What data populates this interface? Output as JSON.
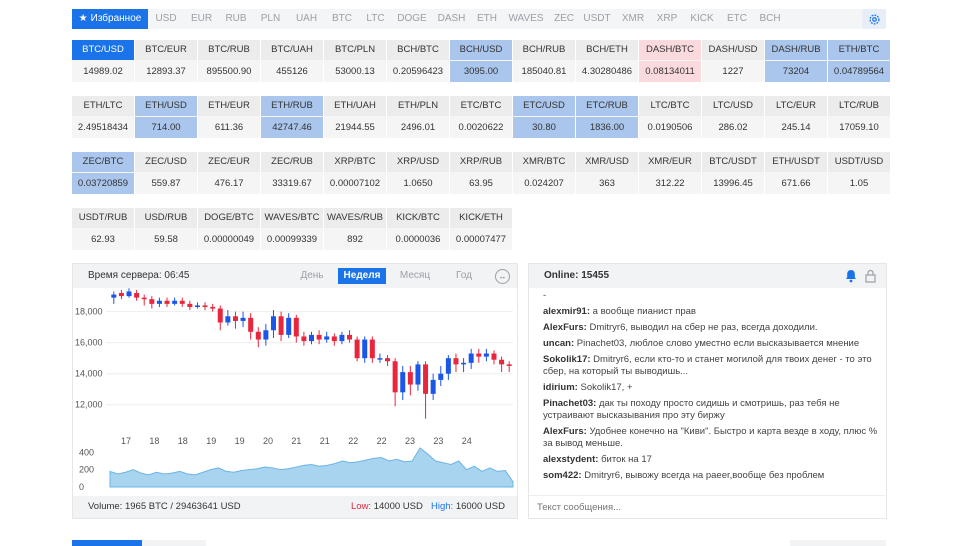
{
  "tabs": [
    {
      "label": "Избранное",
      "active": true
    },
    {
      "label": "USD"
    },
    {
      "label": "EUR"
    },
    {
      "label": "RUB"
    },
    {
      "label": "PLN"
    },
    {
      "label": "UAH"
    },
    {
      "label": "BTC"
    },
    {
      "label": "LTC"
    },
    {
      "label": "DOGE"
    },
    {
      "label": "DASH"
    },
    {
      "label": "ETH"
    },
    {
      "label": "WAVES"
    },
    {
      "label": "ZEC"
    },
    {
      "label": "USDT"
    },
    {
      "label": "XMR"
    },
    {
      "label": "XRP"
    },
    {
      "label": "KICK"
    },
    {
      "label": "ETC"
    },
    {
      "label": "BCH"
    }
  ],
  "pairs": [
    [
      {
        "pair": "BTC/USD",
        "price": "14989.02",
        "state": "selected"
      },
      {
        "pair": "BTC/EUR",
        "price": "12893.37"
      },
      {
        "pair": "BTC/RUB",
        "price": "895500.90"
      },
      {
        "pair": "BTC/UAH",
        "price": "455126"
      },
      {
        "pair": "BTC/PLN",
        "price": "53000.13"
      },
      {
        "pair": "BCH/BTC",
        "price": "0.20596423"
      },
      {
        "pair": "BCH/USD",
        "price": "3095.00",
        "state": "highlight"
      },
      {
        "pair": "BCH/RUB",
        "price": "185040.81"
      },
      {
        "pair": "BCH/ETH",
        "price": "4.30280486"
      },
      {
        "pair": "DASH/BTC",
        "price": "0.08134011",
        "state": "pink"
      },
      {
        "pair": "DASH/USD",
        "price": "1227"
      },
      {
        "pair": "DASH/RUB",
        "price": "73204",
        "state": "highlight"
      },
      {
        "pair": "ETH/BTC",
        "price": "0.04789564",
        "state": "highlight"
      }
    ],
    [
      {
        "pair": "ETH/LTC",
        "price": "2.49518434"
      },
      {
        "pair": "ETH/USD",
        "price": "714.00",
        "state": "highlight"
      },
      {
        "pair": "ETH/EUR",
        "price": "611.36"
      },
      {
        "pair": "ETH/RUB",
        "price": "42747.46",
        "state": "highlight"
      },
      {
        "pair": "ETH/UAH",
        "price": "21944.55"
      },
      {
        "pair": "ETH/PLN",
        "price": "2496.01"
      },
      {
        "pair": "ETC/BTC",
        "price": "0.0020622"
      },
      {
        "pair": "ETC/USD",
        "price": "30.80",
        "state": "highlight"
      },
      {
        "pair": "ETC/RUB",
        "price": "1836.00",
        "state": "highlight"
      },
      {
        "pair": "LTC/BTC",
        "price": "0.0190506"
      },
      {
        "pair": "LTC/USD",
        "price": "286.02"
      },
      {
        "pair": "LTC/EUR",
        "price": "245.14"
      },
      {
        "pair": "LTC/RUB",
        "price": "17059.10"
      }
    ],
    [
      {
        "pair": "ZEC/BTC",
        "price": "0.03720859",
        "state": "highlight"
      },
      {
        "pair": "ZEC/USD",
        "price": "559.87"
      },
      {
        "pair": "ZEC/EUR",
        "price": "476.17"
      },
      {
        "pair": "ZEC/RUB",
        "price": "33319.67"
      },
      {
        "pair": "XRP/BTC",
        "price": "0.00007102"
      },
      {
        "pair": "XRP/USD",
        "price": "1.0650"
      },
      {
        "pair": "XRP/RUB",
        "price": "63.95"
      },
      {
        "pair": "XMR/BTC",
        "price": "0.024207"
      },
      {
        "pair": "XMR/USD",
        "price": "363"
      },
      {
        "pair": "XMR/EUR",
        "price": "312.22"
      },
      {
        "pair": "BTC/USDT",
        "price": "13996.45"
      },
      {
        "pair": "ETH/USDT",
        "price": "671.66"
      },
      {
        "pair": "USDT/USD",
        "price": "1.05"
      }
    ],
    [
      {
        "pair": "USDT/RUB",
        "price": "62.93"
      },
      {
        "pair": "USD/RUB",
        "price": "59.58"
      },
      {
        "pair": "DOGE/BTC",
        "price": "0.00000049"
      },
      {
        "pair": "WAVES/BTC",
        "price": "0.00099339"
      },
      {
        "pair": "WAVES/RUB",
        "price": "892"
      },
      {
        "pair": "KICK/BTC",
        "price": "0.0000036"
      },
      {
        "pair": "KICK/ETH",
        "price": "0.00007477"
      }
    ]
  ],
  "chart_panel": {
    "server_time_label": "Время сервера: 06:45",
    "ranges": [
      {
        "label": "День"
      },
      {
        "label": "Неделя",
        "active": true
      },
      {
        "label": "Месяц"
      },
      {
        "label": "Год"
      }
    ],
    "volume_text": "Volume: 1965 BTC / 29463641 USD",
    "low_label": "Low:",
    "low_value": "14000 USD",
    "high_label": "High:",
    "high_value": "16000 USD"
  },
  "chart_data": {
    "type": "candlestick",
    "x_ticks": [
      "17",
      "18",
      "18",
      "19",
      "19",
      "20",
      "21",
      "21",
      "22",
      "22",
      "23",
      "23",
      "24"
    ],
    "y_ticks": [
      "18,000",
      "16,000",
      "14,000",
      "12,000"
    ],
    "ylim": [
      10500,
      19200
    ],
    "candles": [
      [
        18900,
        19100,
        18500,
        19300
      ],
      [
        19200,
        19000,
        18800,
        19400
      ],
      [
        19000,
        19300,
        18900,
        19500
      ],
      [
        19200,
        18900,
        18700,
        19400
      ],
      [
        18900,
        18800,
        18400,
        19100
      ],
      [
        18800,
        18500,
        18200,
        19000
      ],
      [
        18500,
        18700,
        18300,
        18900
      ],
      [
        18700,
        18500,
        18300,
        18900
      ],
      [
        18500,
        18700,
        18400,
        18900
      ],
      [
        18700,
        18500,
        18300,
        18900
      ],
      [
        18500,
        18300,
        18100,
        18700
      ],
      [
        18300,
        18400,
        18200,
        18600
      ],
      [
        18400,
        18300,
        18100,
        18600
      ],
      [
        18300,
        18200,
        18000,
        18500
      ],
      [
        18200,
        17300,
        16800,
        18400
      ],
      [
        17300,
        17700,
        17100,
        18100
      ],
      [
        17700,
        17400,
        16900,
        18000
      ],
      [
        17400,
        17600,
        17000,
        18000
      ],
      [
        17600,
        16700,
        16200,
        17900
      ],
      [
        16700,
        16200,
        15700,
        17000
      ],
      [
        16200,
        16800,
        15800,
        17200
      ],
      [
        16800,
        17700,
        16300,
        18100
      ],
      [
        17700,
        16500,
        16100,
        18000
      ],
      [
        16500,
        17600,
        16300,
        17900
      ],
      [
        17600,
        16400,
        16000,
        17800
      ],
      [
        16400,
        16100,
        15800,
        16700
      ],
      [
        16100,
        16500,
        15900,
        16700
      ],
      [
        16500,
        16200,
        15900,
        16800
      ],
      [
        16200,
        16400,
        16000,
        16700
      ],
      [
        16400,
        16100,
        15800,
        16600
      ],
      [
        16100,
        16500,
        15900,
        16700
      ],
      [
        16500,
        16200,
        16000,
        16800
      ],
      [
        16200,
        15000,
        14800,
        16400
      ],
      [
        15000,
        16200,
        14700,
        16400
      ],
      [
        16200,
        15000,
        14700,
        16400
      ],
      [
        15000,
        15000,
        14700,
        15300
      ],
      [
        15000,
        14800,
        14500,
        15200
      ],
      [
        14800,
        12800,
        11900,
        15000
      ],
      [
        12800,
        14100,
        12300,
        14500
      ],
      [
        14100,
        13300,
        12600,
        14500
      ],
      [
        13300,
        14600,
        12900,
        14800
      ],
      [
        14600,
        12700,
        11100,
        14800
      ],
      [
        12700,
        13600,
        12300,
        14000
      ],
      [
        13600,
        14000,
        13200,
        14500
      ],
      [
        14000,
        15000,
        13600,
        15200
      ],
      [
        15000,
        14600,
        14100,
        15300
      ],
      [
        14600,
        14700,
        14100,
        15000
      ],
      [
        14700,
        15300,
        14300,
        15600
      ],
      [
        15300,
        15100,
        14700,
        15600
      ],
      [
        15100,
        15300,
        14800,
        15600
      ],
      [
        15300,
        14900,
        14600,
        15500
      ],
      [
        14900,
        14600,
        14100,
        15100
      ],
      [
        14600,
        14500,
        14100,
        14800
      ]
    ],
    "volume": [
      180,
      150,
      170,
      200,
      160,
      140,
      170,
      150,
      160,
      180,
      150,
      140,
      170,
      200,
      220,
      180,
      170,
      190,
      200,
      210,
      230,
      220,
      200,
      210,
      230,
      250,
      260,
      240,
      250,
      270,
      300,
      280,
      290,
      310,
      330,
      340,
      300,
      320,
      290,
      300,
      450,
      380,
      300,
      280,
      260,
      300,
      200,
      240,
      180,
      220,
      180,
      190,
      60
    ],
    "volume_ticks": [
      "400",
      "200",
      "0"
    ],
    "volume_max": 450,
    "colors": {
      "up": "#1a56e8",
      "down": "#e8263e",
      "volume_fill": "#a8d4ef",
      "volume_line": "#6ab5e5"
    }
  },
  "chat": {
    "online_label": "Online: 15455",
    "messages": [
      {
        "user": "",
        "text": "-"
      },
      {
        "user": "alexmir91:",
        "text": "а вообще пианист прав"
      },
      {
        "user": "AlexFurs:",
        "text": "Dmitryr6, выводил на сбер не раз, всегда доходили."
      },
      {
        "user": "uncan:",
        "text": "Pinachet03, люблое слово уместно если высказывается мнение"
      },
      {
        "user": "Sokolik17:",
        "text": "Dmitryr6, если кто-то и станет могилой для твоих денег - то это сбер, на который ты выводишь..."
      },
      {
        "user": "idirium:",
        "text": "Sokolik17, +"
      },
      {
        "user": "Pinachet03:",
        "text": "дак ты походу просто сидишь и смотришь, раз тебя не устраивают высказывания про эту биржу"
      },
      {
        "user": "AlexFurs:",
        "text": "Удобнее конечно на \"Киви\". Быстро и карта везде в ходу, плюс % за вывод меньше."
      },
      {
        "user": "alexstydent:",
        "text": "биток на 17"
      },
      {
        "user": "som422:",
        "text": "Dmitryr6, вывожу всегда на раеer,вообще без проблем"
      }
    ],
    "input_placeholder": "Текст сообщения..."
  }
}
